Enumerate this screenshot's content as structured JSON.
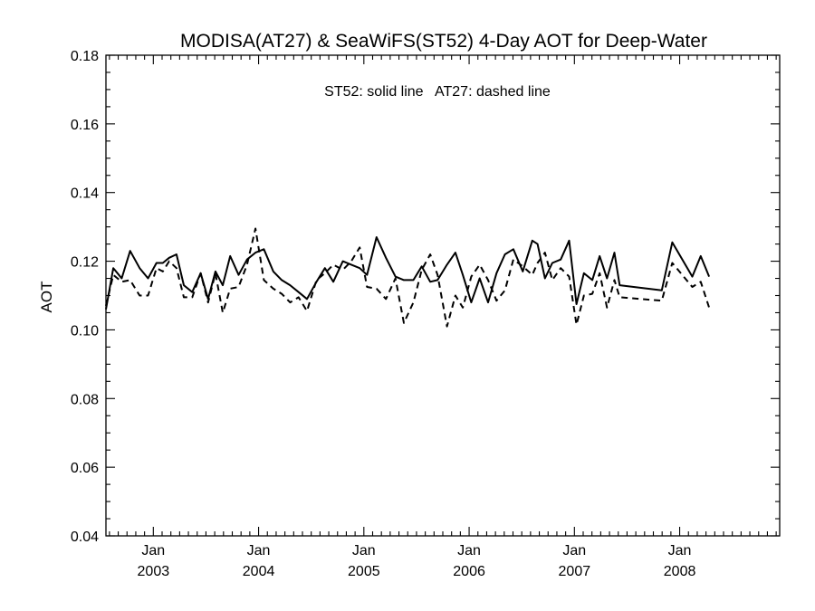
{
  "chart_data": {
    "type": "line",
    "title": "MODISA(AT27) & SeaWiFS(ST52) 4-Day AOT for Deep-Water",
    "annotation": "ST52: solid line   AT27: dashed line",
    "xlabel": "",
    "ylabel": "AOT",
    "ylim": [
      0.04,
      0.18
    ],
    "yticks": [
      "0.04",
      "0.06",
      "0.08",
      "0.10",
      "0.12",
      "0.14",
      "0.16",
      "0.18"
    ],
    "xlim": [
      2002.55,
      2008.95
    ],
    "xticks": [
      {
        "month": "Jan",
        "year": "2003",
        "x": 2003
      },
      {
        "month": "Jan",
        "year": "2004",
        "x": 2004
      },
      {
        "month": "Jan",
        "year": "2005",
        "x": 2005
      },
      {
        "month": "Jan",
        "year": "2006",
        "x": 2006
      },
      {
        "month": "Jan",
        "year": "2007",
        "x": 2007
      },
      {
        "month": "Jan",
        "year": "2008",
        "x": 2008
      }
    ],
    "grid": false,
    "series": [
      {
        "name": "ST52",
        "style": "solid",
        "points": [
          [
            2002.55,
            0.106
          ],
          [
            2002.62,
            0.118
          ],
          [
            2002.7,
            0.115
          ],
          [
            2002.78,
            0.123
          ],
          [
            2002.87,
            0.118
          ],
          [
            2002.95,
            0.115
          ],
          [
            2003.03,
            0.1195
          ],
          [
            2003.09,
            0.1195
          ],
          [
            2003.15,
            0.121
          ],
          [
            2003.22,
            0.122
          ],
          [
            2003.29,
            0.113
          ],
          [
            2003.37,
            0.111
          ],
          [
            2003.45,
            0.1165
          ],
          [
            2003.52,
            0.109
          ],
          [
            2003.59,
            0.117
          ],
          [
            2003.66,
            0.113
          ],
          [
            2003.73,
            0.1215
          ],
          [
            2003.81,
            0.116
          ],
          [
            2003.89,
            0.1205
          ],
          [
            2003.97,
            0.1225
          ],
          [
            2004.05,
            0.1235
          ],
          [
            2004.14,
            0.117
          ],
          [
            2004.22,
            0.1145
          ],
          [
            2004.3,
            0.113
          ],
          [
            2004.38,
            0.111
          ],
          [
            2004.46,
            0.109
          ],
          [
            2004.55,
            0.114
          ],
          [
            2004.63,
            0.118
          ],
          [
            2004.71,
            0.114
          ],
          [
            2004.8,
            0.12
          ],
          [
            2004.88,
            0.119
          ],
          [
            2004.96,
            0.118
          ],
          [
            2005.03,
            0.116
          ],
          [
            2005.12,
            0.127
          ],
          [
            2005.21,
            0.121
          ],
          [
            2005.3,
            0.1155
          ],
          [
            2005.38,
            0.1145
          ],
          [
            2005.47,
            0.1145
          ],
          [
            2005.55,
            0.1185
          ],
          [
            2005.63,
            0.114
          ],
          [
            2005.7,
            0.1145
          ],
          [
            2005.79,
            0.119
          ],
          [
            2005.87,
            0.1225
          ],
          [
            2005.94,
            0.116
          ],
          [
            2006.02,
            0.108
          ],
          [
            2006.1,
            0.115
          ],
          [
            2006.18,
            0.108
          ],
          [
            2006.26,
            0.1165
          ],
          [
            2006.34,
            0.122
          ],
          [
            2006.42,
            0.1235
          ],
          [
            2006.51,
            0.117
          ],
          [
            2006.6,
            0.126
          ],
          [
            2006.65,
            0.125
          ],
          [
            2006.72,
            0.115
          ],
          [
            2006.79,
            0.1195
          ],
          [
            2006.87,
            0.1205
          ],
          [
            2006.95,
            0.126
          ],
          [
            2007.02,
            0.1075
          ],
          [
            2007.09,
            0.1165
          ],
          [
            2007.17,
            0.1145
          ],
          [
            2007.24,
            0.1215
          ],
          [
            2007.31,
            0.115
          ],
          [
            2007.38,
            0.1225
          ],
          [
            2007.43,
            0.113
          ],
          [
            2007.83,
            0.1115
          ],
          [
            2007.93,
            0.1255
          ],
          [
            2008.12,
            0.1155
          ],
          [
            2008.2,
            0.1215
          ],
          [
            2008.28,
            0.1155
          ]
        ]
      },
      {
        "name": "AT27",
        "style": "dashed",
        "points": [
          [
            2002.55,
            0.107
          ],
          [
            2002.62,
            0.116
          ],
          [
            2002.7,
            0.114
          ],
          [
            2002.78,
            0.1145
          ],
          [
            2002.87,
            0.11
          ],
          [
            2002.95,
            0.11
          ],
          [
            2003.03,
            0.118
          ],
          [
            2003.09,
            0.117
          ],
          [
            2003.15,
            0.12
          ],
          [
            2003.22,
            0.118
          ],
          [
            2003.29,
            0.1095
          ],
          [
            2003.37,
            0.1095
          ],
          [
            2003.45,
            0.1165
          ],
          [
            2003.52,
            0.108
          ],
          [
            2003.59,
            0.1165
          ],
          [
            2003.66,
            0.105
          ],
          [
            2003.73,
            0.112
          ],
          [
            2003.81,
            0.1125
          ],
          [
            2003.89,
            0.119
          ],
          [
            2003.97,
            0.1295
          ],
          [
            2004.05,
            0.1145
          ],
          [
            2004.14,
            0.112
          ],
          [
            2004.22,
            0.1105
          ],
          [
            2004.3,
            0.108
          ],
          [
            2004.38,
            0.1095
          ],
          [
            2004.46,
            0.1055
          ],
          [
            2004.55,
            0.1145
          ],
          [
            2004.63,
            0.1165
          ],
          [
            2004.71,
            0.119
          ],
          [
            2004.8,
            0.1175
          ],
          [
            2004.88,
            0.12
          ],
          [
            2004.96,
            0.124
          ],
          [
            2005.03,
            0.1125
          ],
          [
            2005.12,
            0.112
          ],
          [
            2005.21,
            0.109
          ],
          [
            2005.3,
            0.115
          ],
          [
            2005.38,
            0.102
          ],
          [
            2005.47,
            0.108
          ],
          [
            2005.55,
            0.1175
          ],
          [
            2005.63,
            0.122
          ],
          [
            2005.7,
            0.116
          ],
          [
            2005.79,
            0.101
          ],
          [
            2005.87,
            0.11
          ],
          [
            2005.94,
            0.1065
          ],
          [
            2006.02,
            0.1155
          ],
          [
            2006.1,
            0.119
          ],
          [
            2006.18,
            0.1145
          ],
          [
            2006.26,
            0.1085
          ],
          [
            2006.34,
            0.1115
          ],
          [
            2006.42,
            0.1205
          ],
          [
            2006.51,
            0.1185
          ],
          [
            2006.6,
            0.116
          ],
          [
            2006.65,
            0.1195
          ],
          [
            2006.72,
            0.1225
          ],
          [
            2006.79,
            0.1145
          ],
          [
            2006.87,
            0.118
          ],
          [
            2006.95,
            0.1155
          ],
          [
            2007.02,
            0.1015
          ],
          [
            2007.09,
            0.11
          ],
          [
            2007.17,
            0.1105
          ],
          [
            2007.24,
            0.1165
          ],
          [
            2007.31,
            0.1065
          ],
          [
            2007.38,
            0.1145
          ],
          [
            2007.43,
            0.1095
          ],
          [
            2007.83,
            0.1085
          ],
          [
            2007.93,
            0.1195
          ],
          [
            2008.12,
            0.1125
          ],
          [
            2008.2,
            0.114
          ],
          [
            2008.28,
            0.1065
          ]
        ]
      }
    ]
  }
}
